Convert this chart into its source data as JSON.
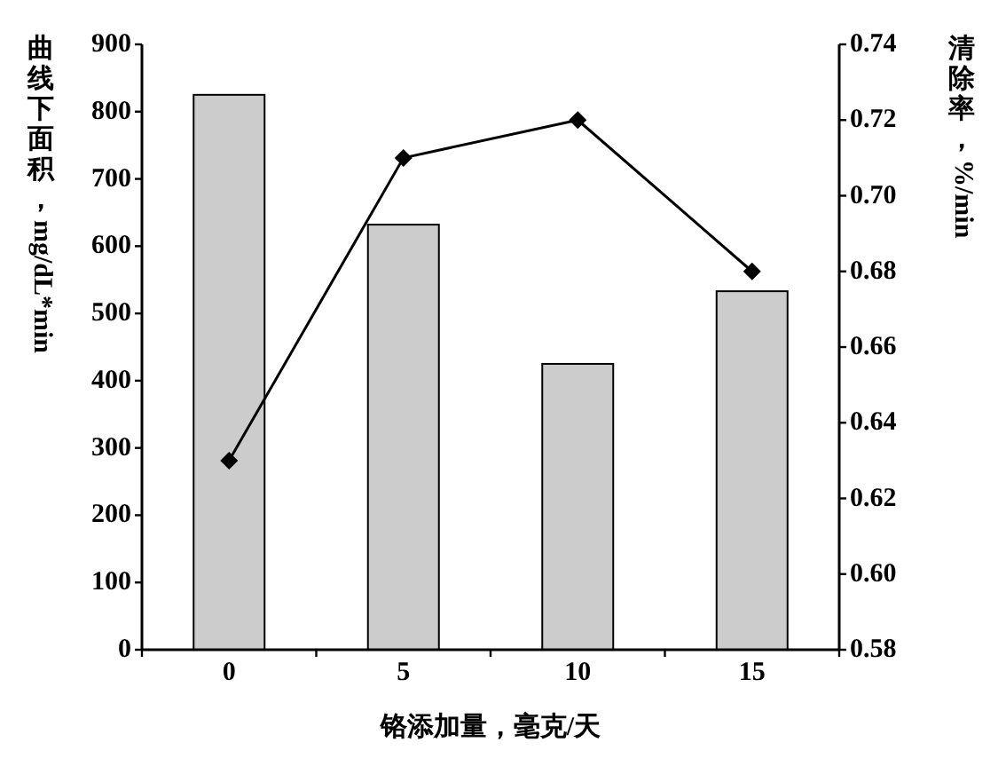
{
  "chart_data": {
    "type": "bar",
    "categories": [
      "0",
      "5",
      "10",
      "15"
    ],
    "xlabel": "铬添加量，毫克/天",
    "ylabel": "曲线下面积，mg/dL*min",
    "y2label": "清除率，%/min",
    "ylim": [
      0,
      900
    ],
    "yticks": [
      0,
      100,
      200,
      300,
      400,
      500,
      600,
      700,
      800,
      900
    ],
    "y2lim": [
      0.58,
      0.74
    ],
    "y2ticks": [
      0.58,
      {
        "value": 0.6,
        "label": "0.60"
      },
      0.62,
      0.64,
      0.66,
      0.68,
      {
        "value": 0.7,
        "label": "0.70"
      },
      0.72,
      0.74
    ],
    "series": [
      {
        "color": "#cccccc",
        "values": [
          825,
          632,
          425,
          533
        ]
      },
      {
        "type": "line",
        "axis": "y2",
        "color": "#000000",
        "marker": "diamond",
        "values": [
          0.63,
          0.71,
          0.72,
          0.68
        ]
      }
    ]
  }
}
